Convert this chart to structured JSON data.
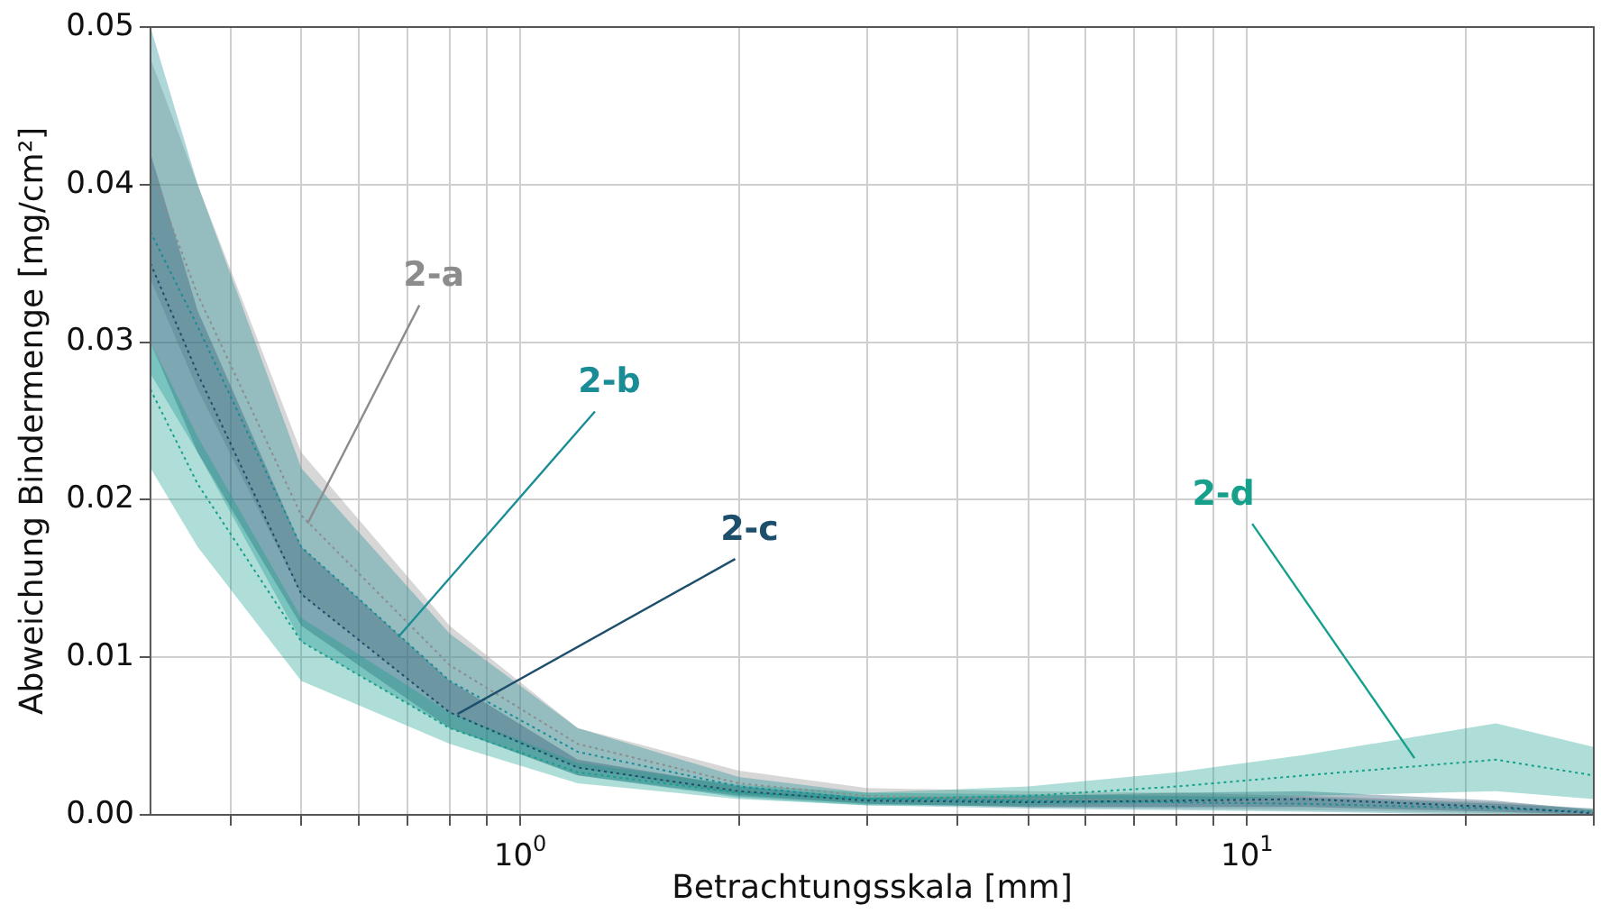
{
  "chart_data": {
    "type": "line",
    "xlabel": "Betrachtungsskala [mm]",
    "ylabel": "Abweichung Bindermenge [mg/cm²]",
    "log": "x",
    "grid": true,
    "legend": false,
    "marker": "none",
    "line_style": "dotted",
    "xlim": [
      0.31,
      30
    ],
    "ylim": [
      0,
      0.05
    ],
    "xticks": [
      {
        "value": 0.4,
        "label": null
      },
      {
        "value": 0.5,
        "label": null
      },
      {
        "value": 0.6,
        "label": null
      },
      {
        "value": 0.7,
        "label": null
      },
      {
        "value": 0.8,
        "label": null
      },
      {
        "value": 0.9,
        "label": null
      },
      {
        "value": 1,
        "label": "10$^{0}$"
      },
      {
        "value": 2,
        "label": null
      },
      {
        "value": 3,
        "label": null
      },
      {
        "value": 4,
        "label": null
      },
      {
        "value": 5,
        "label": null
      },
      {
        "value": 6,
        "label": null
      },
      {
        "value": 7,
        "label": null
      },
      {
        "value": 8,
        "label": null
      },
      {
        "value": 9,
        "label": null
      },
      {
        "value": 10,
        "label": "10$^{1}$"
      },
      {
        "value": 20,
        "label": null
      },
      {
        "value": 30,
        "label": null
      }
    ],
    "yticks": [
      {
        "value": 0,
        "label": "0.00"
      },
      {
        "value": 0.01,
        "label": "0.01"
      },
      {
        "value": 0.02,
        "label": "0.02"
      },
      {
        "value": 0.03,
        "label": "0.03"
      },
      {
        "value": 0.04,
        "label": "0.04"
      },
      {
        "value": 0.05,
        "label": "0.05"
      }
    ],
    "x": [
      0.31,
      0.36,
      0.5,
      0.8,
      1.2,
      2,
      3,
      5,
      8,
      12,
      22,
      30
    ],
    "series": [
      {
        "color": "#8c8c8c",
        "values": [
          0.041,
          0.033,
          0.019,
          0.0095,
          0.0045,
          0.002,
          0.0012,
          0.001,
          0.0009,
          0.0007,
          0.0004,
          0.0002
        ],
        "lower": [
          0.034,
          0.027,
          0.014,
          0.0065,
          0.003,
          0.0013,
          0.0007,
          0.0005,
          0.0004,
          0.0003,
          0.0001,
          0
        ],
        "upper": [
          0.048,
          0.04,
          0.023,
          0.012,
          0.0055,
          0.0028,
          0.0017,
          0.0015,
          0.0014,
          0.0012,
          0.0008,
          0.0004
        ]
      },
      {
        "color": "#1a8c96",
        "values": [
          0.037,
          0.031,
          0.017,
          0.0085,
          0.004,
          0.0018,
          0.001,
          0.0009,
          0.0008,
          0.0007,
          0.0004,
          0.0002
        ],
        "lower": [
          0.028,
          0.023,
          0.011,
          0.0055,
          0.0025,
          0.0011,
          0.0006,
          0.0004,
          0.0003,
          0.0002,
          0,
          0
        ],
        "upper": [
          0.05,
          0.04,
          0.022,
          0.0115,
          0.0055,
          0.0024,
          0.0014,
          0.0013,
          0.0012,
          0.0011,
          0.0007,
          0.0004
        ]
      },
      {
        "color": "#1d4e6b",
        "values": [
          0.035,
          0.028,
          0.014,
          0.0065,
          0.003,
          0.0015,
          0.0009,
          0.0008,
          0.0009,
          0.001,
          0.0005,
          0.0001
        ],
        "lower": [
          0.03,
          0.023,
          0.012,
          0.0055,
          0.0025,
          0.0012,
          0.0007,
          0.0005,
          0.0005,
          0.0005,
          0.0002,
          0
        ],
        "upper": [
          0.042,
          0.032,
          0.017,
          0.0085,
          0.0035,
          0.0018,
          0.0011,
          0.0012,
          0.0014,
          0.0015,
          0.0009,
          0.0003
        ]
      },
      {
        "color": "#16a08c",
        "values": [
          0.027,
          0.021,
          0.011,
          0.0055,
          0.0027,
          0.0014,
          0.001,
          0.0012,
          0.0018,
          0.0025,
          0.0035,
          0.0025
        ],
        "lower": [
          0.022,
          0.017,
          0.0085,
          0.0045,
          0.002,
          0.001,
          0.0006,
          0.0006,
          0.0008,
          0.0012,
          0.0015,
          0.001
        ],
        "upper": [
          0.03,
          0.024,
          0.0125,
          0.0065,
          0.0033,
          0.0019,
          0.0014,
          0.0018,
          0.0027,
          0.0038,
          0.0058,
          0.0043
        ]
      }
    ],
    "annotations": [
      {
        "text": "2-a",
        "x": 0.51,
        "y": 0.0185
      },
      {
        "text": "2-b",
        "x": 0.68,
        "y": 0.0113
      },
      {
        "text": "2-c",
        "x": 0.82,
        "y": 0.0064
      },
      {
        "text": "2-d",
        "x": 17,
        "y": 0.0036
      }
    ]
  }
}
